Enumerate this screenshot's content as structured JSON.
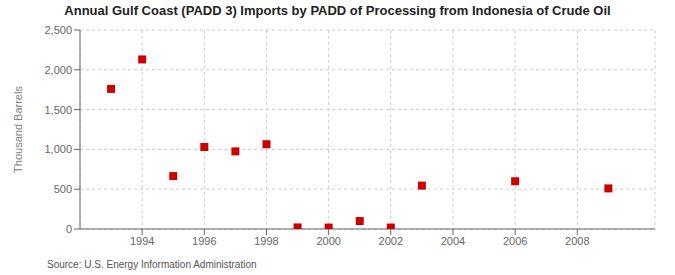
{
  "chart_data": {
    "type": "scatter",
    "title": "Annual Gulf Coast (PADD 3) Imports by PADD of Processing from Indonesia of Crude Oil",
    "y_label": "Thousand Barrels",
    "annotations": [
      "Source: U.S. Energy Information Administration"
    ],
    "x": [
      1993,
      1994,
      1995,
      1996,
      1997,
      1998,
      1999,
      2000,
      2001,
      2002,
      2003,
      2006,
      2009
    ],
    "values": [
      1760,
      2130,
      665,
      1030,
      975,
      1065,
      20,
      18,
      100,
      18,
      545,
      600,
      510
    ],
    "color": "#cc0000",
    "marker": "square",
    "xlim": [
      1992.0,
      2010.5
    ],
    "ylim": [
      0,
      2500
    ],
    "xticks": [
      1994,
      1996,
      1998,
      2000,
      2002,
      2004,
      2006,
      2008
    ],
    "yticks": [
      0,
      500,
      {
        "value": 1000,
        "label": "1,000"
      },
      {
        "value": 1500,
        "label": "1,500"
      },
      {
        "value": 2000,
        "label": "2,000"
      },
      {
        "value": 2500,
        "label": "2,500"
      }
    ],
    "grid": true
  }
}
